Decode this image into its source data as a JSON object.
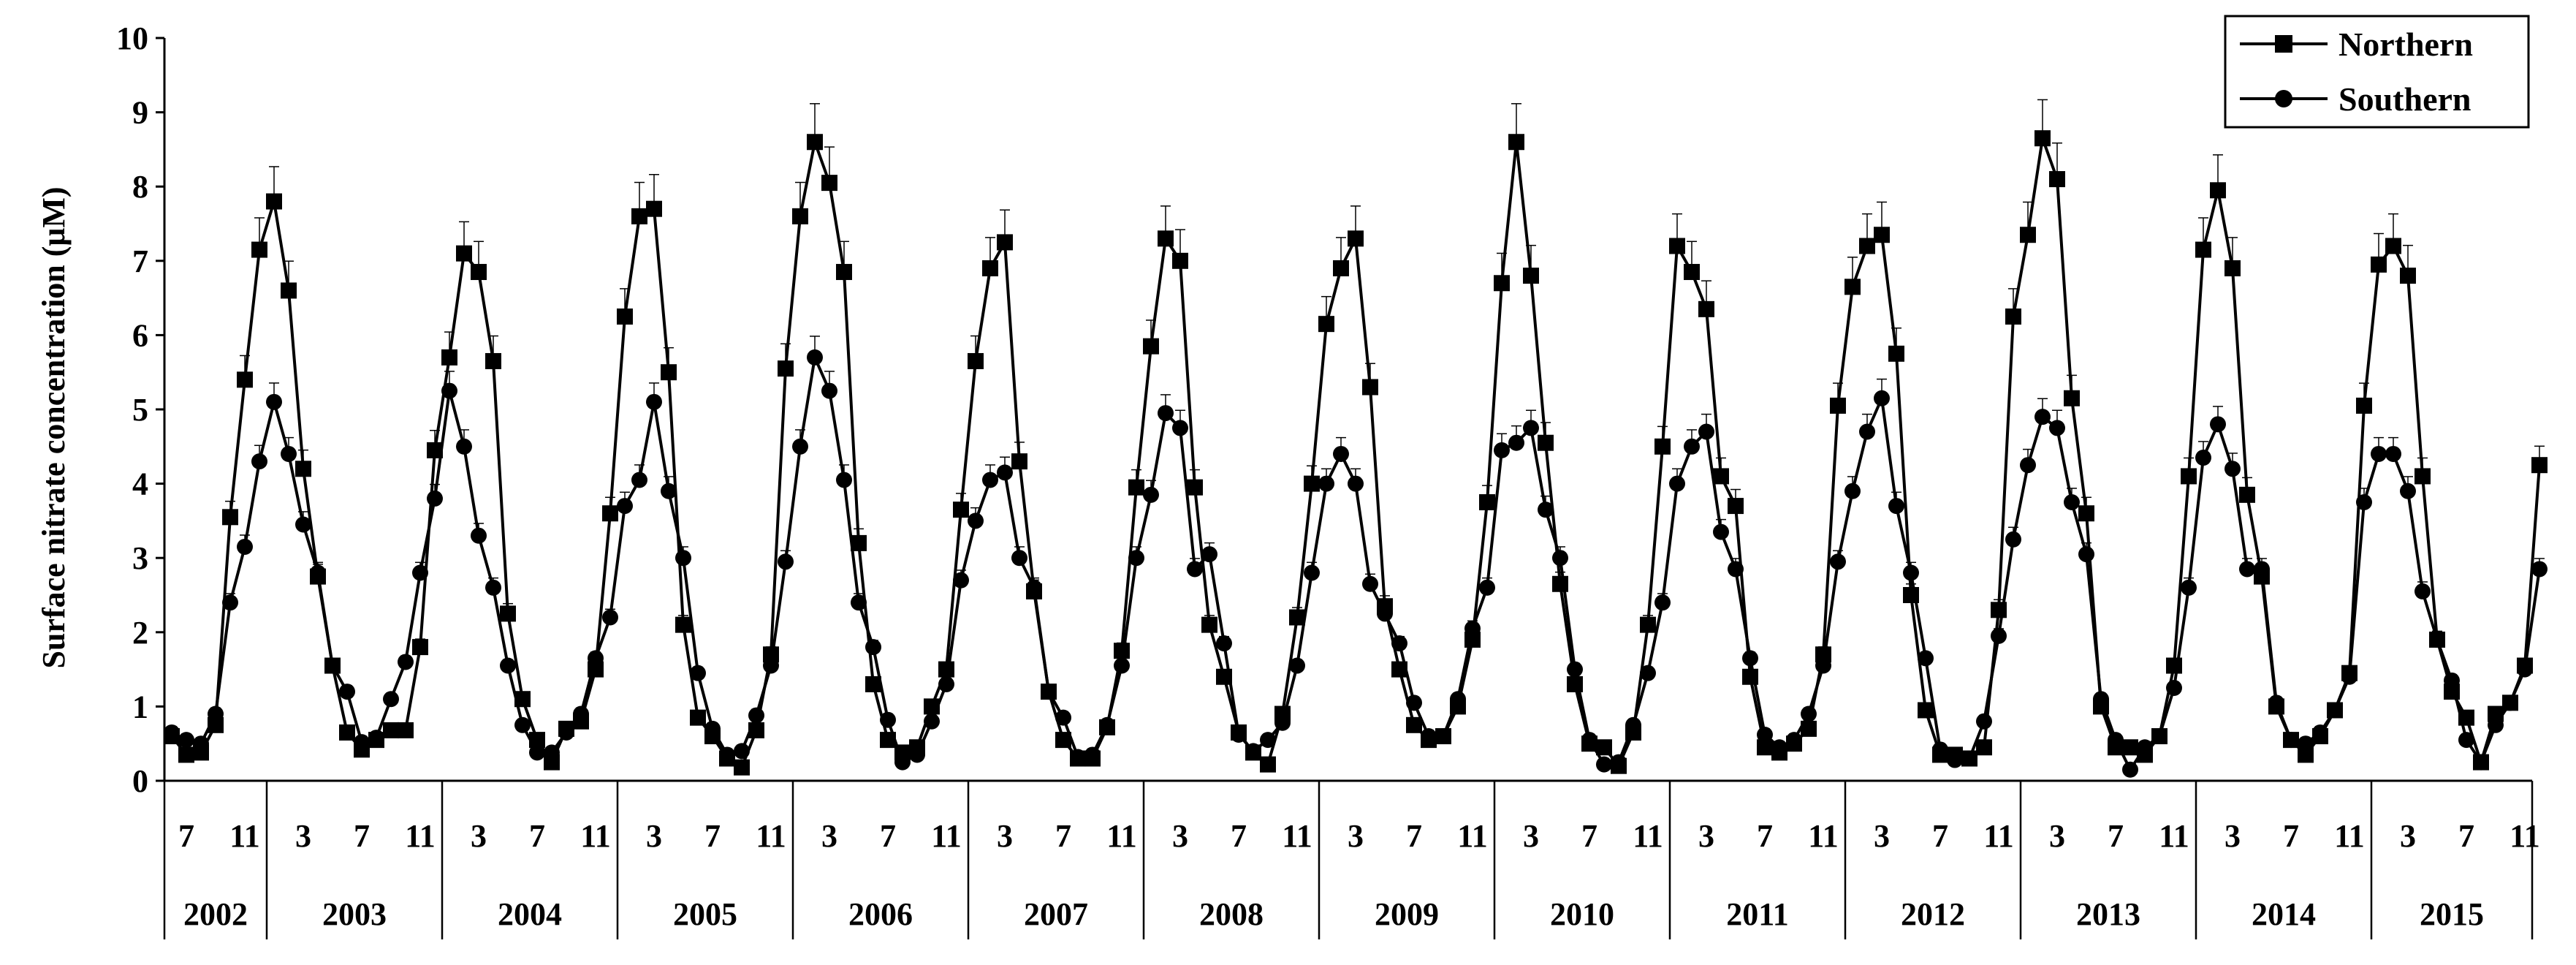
{
  "chart_data": {
    "type": "line",
    "title": "",
    "xlabel": "",
    "ylabel": "Surface nitrate concentration (μM)",
    "ylim": [
      0,
      10
    ],
    "yticks": [
      0,
      1,
      2,
      3,
      4,
      5,
      6,
      7,
      8,
      9,
      10
    ],
    "grid": false,
    "legend_position": "top-right",
    "month_tick_labels": [
      "7",
      "11",
      "3",
      "7",
      "11"
    ],
    "year_labels": [
      "2002",
      "2003",
      "2004",
      "2005",
      "2006",
      "2007",
      "2008",
      "2009",
      "2010",
      "2011",
      "2012",
      "2013",
      "2014",
      "2015"
    ],
    "x_start": "2002-06",
    "series": [
      {
        "name": "Northern",
        "marker": "square",
        "values": [
          0.6,
          0.35,
          0.38,
          0.75,
          3.55,
          5.4,
          7.15,
          7.8,
          6.6,
          4.2,
          2.75,
          1.55,
          0.65,
          0.42,
          0.55,
          0.68,
          0.68,
          1.8,
          4.45,
          5.7,
          7.1,
          6.85,
          5.65,
          2.25,
          1.1,
          0.55,
          0.25,
          0.7,
          0.8,
          1.5,
          3.6,
          6.25,
          7.6,
          7.7,
          5.5,
          2.1,
          0.85,
          0.6,
          0.3,
          0.18,
          0.68,
          1.7,
          5.55,
          7.6,
          8.6,
          8.05,
          6.85,
          3.2,
          1.3,
          0.55,
          0.38,
          0.45,
          1.0,
          1.5,
          3.65,
          5.65,
          6.9,
          7.25,
          4.3,
          2.55,
          1.2,
          0.55,
          0.3,
          0.3,
          0.72,
          1.75,
          3.95,
          5.85,
          7.3,
          7.0,
          3.95,
          2.1,
          1.4,
          0.65,
          0.38,
          0.22,
          0.9,
          2.2,
          4.0,
          6.15,
          6.9,
          7.3,
          5.3,
          2.35,
          1.5,
          0.75,
          0.55,
          0.6,
          1.0,
          1.9,
          3.75,
          6.7,
          8.6,
          6.8,
          4.55,
          2.65,
          1.3,
          0.5,
          0.45,
          0.2,
          0.65,
          2.1,
          4.5,
          7.2,
          6.85,
          6.35,
          4.1,
          3.7,
          1.4,
          0.45,
          0.38,
          0.5,
          0.7,
          1.7,
          5.05,
          6.65,
          7.2,
          7.35,
          5.75,
          2.5,
          0.95,
          0.35,
          0.35,
          0.3,
          0.45,
          2.3,
          6.25,
          7.35,
          8.65,
          8.1,
          5.15,
          3.6,
          1.0,
          0.45,
          0.45,
          0.35,
          0.6,
          1.55,
          4.1,
          7.15,
          7.95,
          6.9,
          3.85,
          2.75,
          1.0,
          0.55,
          0.35,
          0.6,
          0.95,
          1.45,
          5.05,
          6.95,
          7.2,
          6.8,
          4.1,
          1.9,
          1.2,
          0.85,
          0.25,
          0.9,
          1.05,
          1.55,
          4.25
        ]
      },
      {
        "name": "Southern",
        "marker": "circle",
        "values": [
          0.65,
          0.55,
          0.5,
          0.9,
          2.4,
          3.15,
          4.3,
          5.1,
          4.4,
          3.45,
          2.8,
          1.55,
          1.2,
          0.52,
          0.58,
          1.1,
          1.6,
          2.8,
          3.8,
          5.25,
          4.5,
          3.3,
          2.6,
          1.55,
          0.75,
          0.38,
          0.38,
          0.65,
          0.9,
          1.65,
          2.2,
          3.7,
          4.05,
          5.1,
          3.9,
          3.0,
          1.45,
          0.7,
          0.35,
          0.4,
          0.88,
          1.55,
          2.95,
          4.5,
          5.7,
          5.25,
          4.05,
          2.4,
          1.8,
          0.82,
          0.25,
          0.35,
          0.8,
          1.3,
          2.7,
          3.5,
          4.05,
          4.15,
          3.0,
          2.6,
          1.2,
          0.85,
          0.32,
          0.35,
          0.75,
          1.55,
          3.0,
          3.85,
          4.95,
          4.75,
          2.85,
          3.05,
          1.85,
          0.62,
          0.4,
          0.55,
          0.78,
          1.55,
          2.8,
          4.0,
          4.4,
          4.0,
          2.65,
          2.25,
          1.85,
          1.05,
          0.6,
          0.6,
          1.1,
          2.05,
          2.6,
          4.45,
          4.55,
          4.75,
          3.65,
          3.0,
          1.5,
          0.55,
          0.22,
          0.25,
          0.75,
          1.45,
          2.4,
          4.0,
          4.5,
          4.7,
          3.35,
          2.85,
          1.65,
          0.62,
          0.45,
          0.55,
          0.9,
          1.55,
          2.95,
          3.9,
          4.7,
          5.15,
          3.7,
          2.8,
          1.65,
          0.42,
          0.28,
          0.3,
          0.8,
          1.95,
          3.25,
          4.25,
          4.9,
          4.75,
          3.75,
          3.05,
          1.1,
          0.55,
          0.15,
          0.45,
          0.6,
          1.25,
          2.6,
          4.35,
          4.8,
          4.2,
          2.85,
          2.85,
          1.05,
          0.55,
          0.5,
          0.65,
          0.95,
          1.4,
          3.75,
          4.4,
          4.4,
          3.9,
          2.55,
          1.9,
          1.35,
          0.55,
          0.25,
          0.75,
          1.05,
          1.5,
          2.85
        ]
      }
    ]
  }
}
